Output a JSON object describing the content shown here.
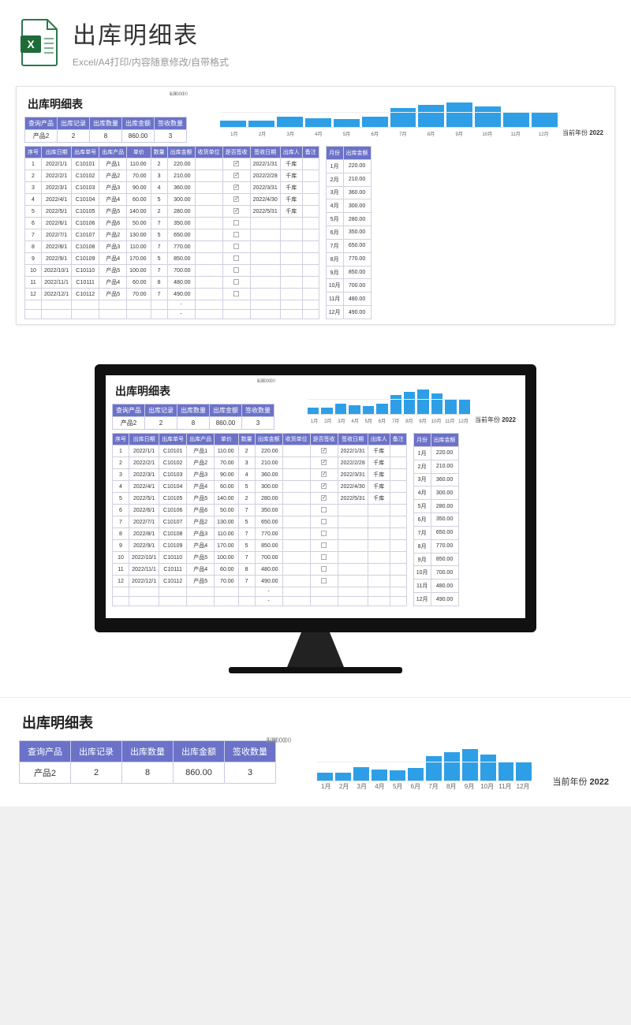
{
  "hero": {
    "title": "出库明细表",
    "subtitle": "Excel/A4打印/内容随意修改/自带格式"
  },
  "colors": {
    "header_bg": "#6b72c8",
    "header_fg": "#ffffff",
    "border": "#d0d0e0",
    "bar": "#2e9fe6",
    "grid": "#eeeeee",
    "text": "#333333"
  },
  "sheet": {
    "title": "出库明细表",
    "summary_headers": [
      "查询产品",
      "出库记录",
      "出库数量",
      "出库金额",
      "签收数量"
    ],
    "summary_values": [
      "产品2",
      "2",
      "8",
      "860.00",
      "3"
    ],
    "year_label": "当前年份",
    "year_value": "2022"
  },
  "chart": {
    "type": "bar",
    "categories": [
      "1月",
      "2月",
      "3月",
      "4月",
      "5月",
      "6月",
      "7月",
      "8月",
      "9月",
      "10月",
      "11月",
      "12月"
    ],
    "values": [
      220,
      210,
      360,
      300,
      280,
      350,
      650,
      770,
      850,
      700,
      480,
      490
    ],
    "ylim": [
      0,
      1000
    ],
    "yticks": [
      "1,000.00",
      "500.00",
      "-"
    ],
    "bar_color": "#2e9fe6",
    "grid_color": "#eeeeee",
    "axis_fontsize": 7
  },
  "main_headers": [
    "序号",
    "出库日期",
    "出库单号",
    "出库产品",
    "单价",
    "数量",
    "出库金额",
    "收货单位",
    "是否签收",
    "签收日期",
    "出库人",
    "备注"
  ],
  "month_headers": [
    "月份",
    "出库金额"
  ],
  "rows": [
    {
      "no": 1,
      "date": "2022/1/1",
      "code": "C10101",
      "prod": "产品1",
      "price": "110.00",
      "qty": 2,
      "amt": "220.00",
      "recv": "",
      "signed": true,
      "sdate": "2022/1/31",
      "op": "千库",
      "note": ""
    },
    {
      "no": 2,
      "date": "2022/2/1",
      "code": "C10102",
      "prod": "产品2",
      "price": "70.00",
      "qty": 3,
      "amt": "210.00",
      "recv": "",
      "signed": true,
      "sdate": "2022/2/28",
      "op": "千库",
      "note": ""
    },
    {
      "no": 3,
      "date": "2022/3/1",
      "code": "C10103",
      "prod": "产品3",
      "price": "90.00",
      "qty": 4,
      "amt": "360.00",
      "recv": "",
      "signed": true,
      "sdate": "2022/3/31",
      "op": "千库",
      "note": ""
    },
    {
      "no": 4,
      "date": "2022/4/1",
      "code": "C10104",
      "prod": "产品4",
      "price": "60.00",
      "qty": 5,
      "amt": "300.00",
      "recv": "",
      "signed": true,
      "sdate": "2022/4/30",
      "op": "千库",
      "note": ""
    },
    {
      "no": 5,
      "date": "2022/5/1",
      "code": "C10105",
      "prod": "产品5",
      "price": "140.00",
      "qty": 2,
      "amt": "280.00",
      "recv": "",
      "signed": true,
      "sdate": "2022/5/31",
      "op": "千库",
      "note": ""
    },
    {
      "no": 6,
      "date": "2022/6/1",
      "code": "C10106",
      "prod": "产品6",
      "price": "50.00",
      "qty": 7,
      "amt": "350.00",
      "recv": "",
      "signed": false,
      "sdate": "",
      "op": "",
      "note": ""
    },
    {
      "no": 7,
      "date": "2022/7/1",
      "code": "C10107",
      "prod": "产品2",
      "price": "130.00",
      "qty": 5,
      "amt": "650.00",
      "recv": "",
      "signed": false,
      "sdate": "",
      "op": "",
      "note": ""
    },
    {
      "no": 8,
      "date": "2022/8/1",
      "code": "C10108",
      "prod": "产品3",
      "price": "110.00",
      "qty": 7,
      "amt": "770.00",
      "recv": "",
      "signed": false,
      "sdate": "",
      "op": "",
      "note": ""
    },
    {
      "no": 9,
      "date": "2022/9/1",
      "code": "C10109",
      "prod": "产品4",
      "price": "170.00",
      "qty": 5,
      "amt": "850.00",
      "recv": "",
      "signed": false,
      "sdate": "",
      "op": "",
      "note": ""
    },
    {
      "no": 10,
      "date": "2022/10/1",
      "code": "C10110",
      "prod": "产品5",
      "price": "100.00",
      "qty": 7,
      "amt": "700.00",
      "recv": "",
      "signed": false,
      "sdate": "",
      "op": "",
      "note": ""
    },
    {
      "no": 11,
      "date": "2022/11/1",
      "code": "C10111",
      "prod": "产品4",
      "price": "60.00",
      "qty": 8,
      "amt": "480.00",
      "recv": "",
      "signed": false,
      "sdate": "",
      "op": "",
      "note": ""
    },
    {
      "no": 12,
      "date": "2022/12/1",
      "code": "C10112",
      "prod": "产品5",
      "price": "70.00",
      "qty": 7,
      "amt": "490.00",
      "recv": "",
      "signed": false,
      "sdate": "",
      "op": "",
      "note": ""
    }
  ],
  "months": [
    {
      "m": "1月",
      "amt": "220.00"
    },
    {
      "m": "2月",
      "amt": "210.00"
    },
    {
      "m": "3月",
      "amt": "360.00"
    },
    {
      "m": "4月",
      "amt": "300.00"
    },
    {
      "m": "5月",
      "amt": "280.00"
    },
    {
      "m": "6月",
      "amt": "350.00"
    },
    {
      "m": "7月",
      "amt": "650.00"
    },
    {
      "m": "8月",
      "amt": "770.00"
    },
    {
      "m": "9月",
      "amt": "850.00"
    },
    {
      "m": "10月",
      "amt": "700.00"
    },
    {
      "m": "11月",
      "amt": "480.00"
    },
    {
      "m": "12月",
      "amt": "490.00"
    }
  ],
  "footer_dashes": [
    "-",
    "-"
  ]
}
